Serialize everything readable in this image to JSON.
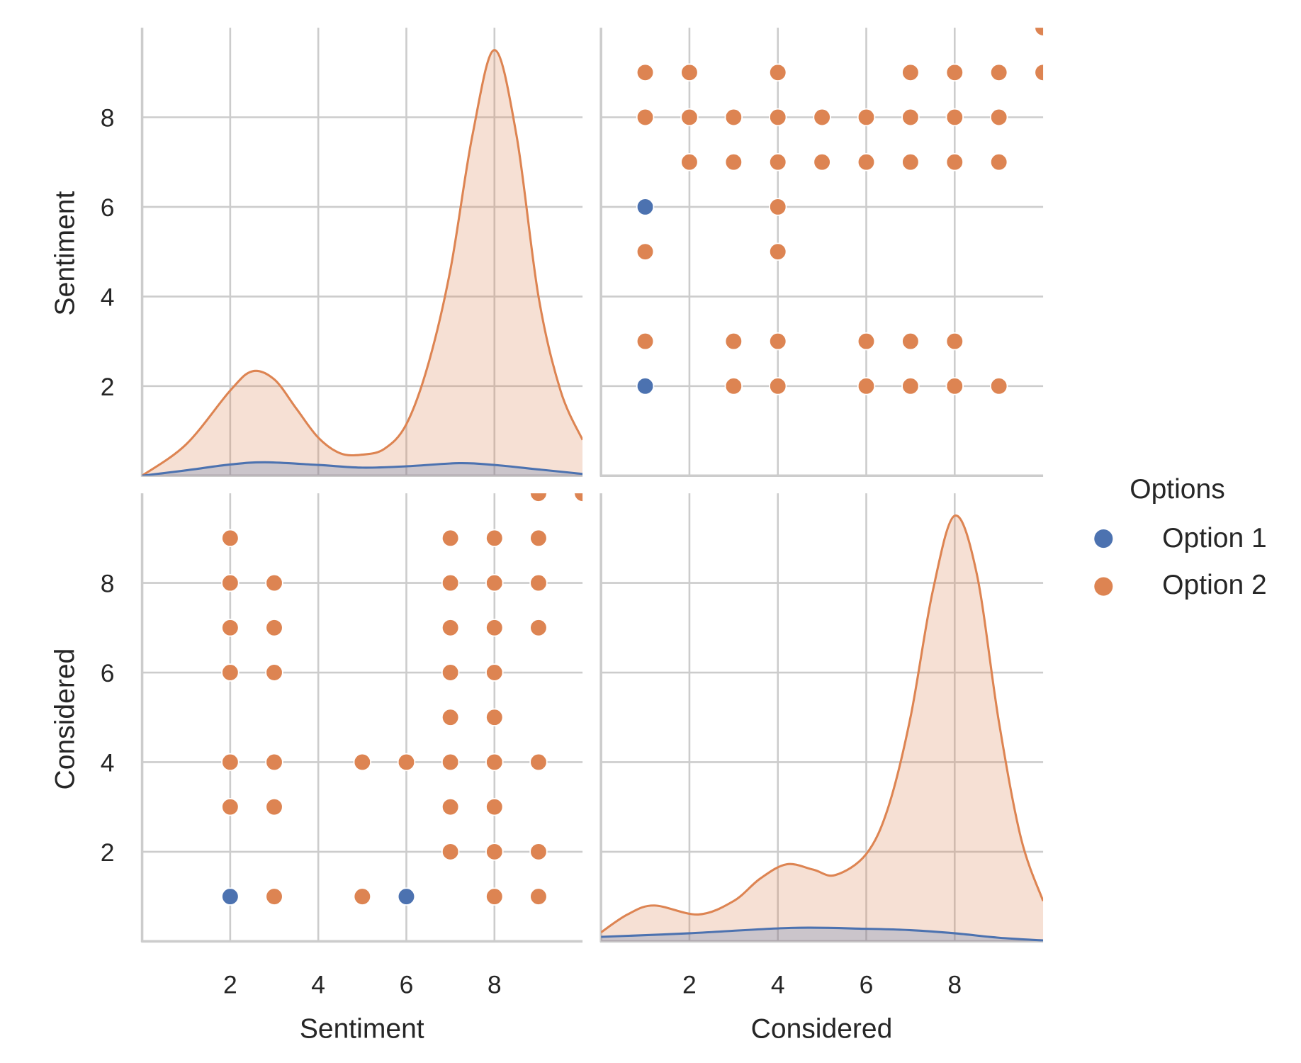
{
  "chart_data": {
    "type": "pairplot",
    "variables": [
      "Sentiment",
      "Considered"
    ],
    "axis_range": [
      0,
      10
    ],
    "ticks": [
      2,
      4,
      6,
      8
    ],
    "grid": true,
    "legend": {
      "title": "Options",
      "placement": "right",
      "entries": [
        "Option 1",
        "Option 2"
      ]
    },
    "colors": {
      "Option 1": "#4c72b0",
      "Option 2": "#dd8452",
      "grid": "#cccccc"
    },
    "points": {
      "description_of_fields": "each point is [Sentiment, Considered, option]",
      "data": [
        [
          10,
          10,
          "Option 2"
        ],
        [
          9,
          1,
          "Option 2"
        ],
        [
          9,
          2,
          "Option 2"
        ],
        [
          9,
          4,
          "Option 2"
        ],
        [
          9,
          7,
          "Option 2"
        ],
        [
          9,
          8,
          "Option 2"
        ],
        [
          9,
          9,
          "Option 2"
        ],
        [
          9,
          10,
          "Option 2"
        ],
        [
          8,
          1,
          "Option 2"
        ],
        [
          8,
          2,
          "Option 2"
        ],
        [
          8,
          3,
          "Option 2"
        ],
        [
          8,
          4,
          "Option 2"
        ],
        [
          8,
          5,
          "Option 2"
        ],
        [
          8,
          6,
          "Option 2"
        ],
        [
          8,
          7,
          "Option 2"
        ],
        [
          8,
          8,
          "Option 2"
        ],
        [
          8,
          9,
          "Option 2"
        ],
        [
          7,
          2,
          "Option 2"
        ],
        [
          7,
          3,
          "Option 2"
        ],
        [
          7,
          4,
          "Option 2"
        ],
        [
          7,
          5,
          "Option 2"
        ],
        [
          7,
          6,
          "Option 2"
        ],
        [
          7,
          7,
          "Option 2"
        ],
        [
          7,
          8,
          "Option 2"
        ],
        [
          7,
          9,
          "Option 2"
        ],
        [
          6,
          1,
          "Option 1"
        ],
        [
          6,
          4,
          "Option 2"
        ],
        [
          5,
          1,
          "Option 2"
        ],
        [
          5,
          4,
          "Option 2"
        ],
        [
          3,
          1,
          "Option 2"
        ],
        [
          3,
          3,
          "Option 2"
        ],
        [
          3,
          4,
          "Option 2"
        ],
        [
          3,
          6,
          "Option 2"
        ],
        [
          3,
          7,
          "Option 2"
        ],
        [
          3,
          8,
          "Option 2"
        ],
        [
          2,
          1,
          "Option 1"
        ],
        [
          2,
          3,
          "Option 2"
        ],
        [
          2,
          4,
          "Option 2"
        ],
        [
          2,
          6,
          "Option 2"
        ],
        [
          2,
          7,
          "Option 2"
        ],
        [
          2,
          8,
          "Option 2"
        ],
        [
          2,
          9,
          "Option 2"
        ]
      ]
    },
    "kde": {
      "Sentiment": {
        "Option 2": [
          [
            0,
            0
          ],
          [
            1,
            0.7
          ],
          [
            2,
            1.9
          ],
          [
            2.5,
            2.33
          ],
          [
            3,
            2.15
          ],
          [
            3.5,
            1.5
          ],
          [
            4,
            0.85
          ],
          [
            4.5,
            0.5
          ],
          [
            5,
            0.47
          ],
          [
            5.5,
            0.6
          ],
          [
            6,
            1.15
          ],
          [
            6.5,
            2.5
          ],
          [
            7,
            4.6
          ],
          [
            7.5,
            7.6
          ],
          [
            8,
            9.5
          ],
          [
            8.5,
            7.6
          ],
          [
            9,
            4.0
          ],
          [
            9.5,
            1.9
          ],
          [
            10,
            0.8
          ]
        ],
        "Option 1": [
          [
            0,
            0
          ],
          [
            1,
            0.12
          ],
          [
            2,
            0.25
          ],
          [
            2.8,
            0.3
          ],
          [
            4,
            0.24
          ],
          [
            5,
            0.18
          ],
          [
            6,
            0.21
          ],
          [
            7.2,
            0.28
          ],
          [
            8,
            0.24
          ],
          [
            9,
            0.14
          ],
          [
            10,
            0.04
          ]
        ]
      },
      "Considered": {
        "Option 2": [
          [
            0,
            0.2
          ],
          [
            0.6,
            0.6
          ],
          [
            1.2,
            0.8
          ],
          [
            2.2,
            0.6
          ],
          [
            3,
            0.9
          ],
          [
            3.6,
            1.4
          ],
          [
            4.2,
            1.72
          ],
          [
            4.8,
            1.6
          ],
          [
            5.3,
            1.48
          ],
          [
            6,
            1.95
          ],
          [
            6.5,
            3.0
          ],
          [
            7,
            5.0
          ],
          [
            7.5,
            7.8
          ],
          [
            8,
            9.5
          ],
          [
            8.5,
            8.2
          ],
          [
            9,
            4.9
          ],
          [
            9.5,
            2.3
          ],
          [
            10,
            0.9
          ]
        ],
        "Option 1": [
          [
            0,
            0.1
          ],
          [
            2,
            0.18
          ],
          [
            4.3,
            0.3
          ],
          [
            6,
            0.28
          ],
          [
            7,
            0.25
          ],
          [
            8,
            0.18
          ],
          [
            9,
            0.08
          ],
          [
            10,
            0.02
          ]
        ]
      }
    }
  }
}
